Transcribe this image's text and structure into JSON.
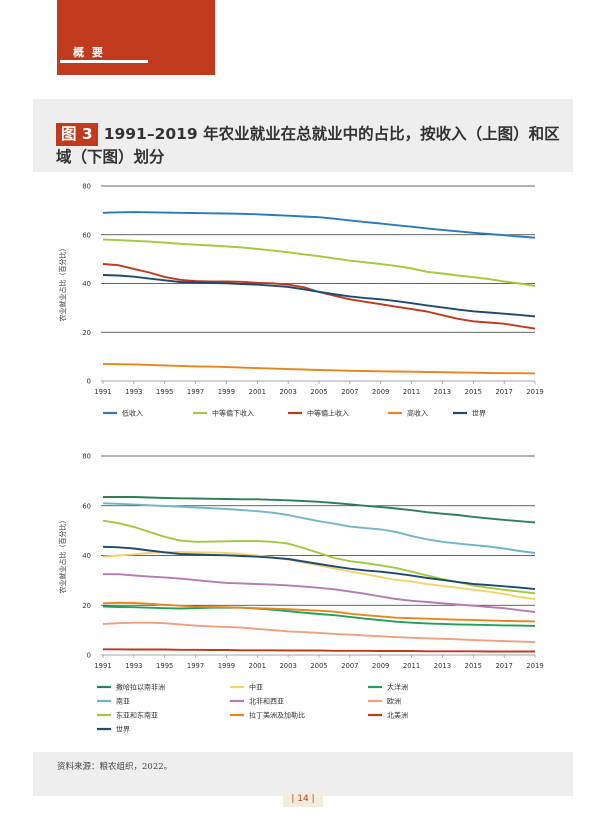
{
  "header": {
    "tab_label": "概 要"
  },
  "figure": {
    "badge": "图 3",
    "title": "1991–2019 年农业就业在总就业中的占比，按收入（上图）和区域（下图）划分"
  },
  "source": "资料来源：粮农组织，2022。",
  "page_number": "| 14 |",
  "chart_data": [
    {
      "type": "line",
      "title": "",
      "ylabel": "农业就业占比（百分比）",
      "xlabel": "",
      "ylim": [
        0,
        80
      ],
      "yticks": [
        "0",
        "20",
        "40",
        "60",
        "80"
      ],
      "xticks": [
        "1991",
        "1993",
        "1995",
        "1997",
        "1999",
        "2001",
        "2003",
        "2005",
        "2007",
        "2009",
        "2011",
        "2013",
        "2015",
        "2017",
        "2019"
      ],
      "grid": true,
      "legend_position": "bottom",
      "x": [
        1991,
        1992,
        1993,
        1994,
        1995,
        1996,
        1997,
        1998,
        1999,
        2000,
        2001,
        2002,
        2003,
        2004,
        2005,
        2006,
        2007,
        2008,
        2009,
        2010,
        2011,
        2012,
        2013,
        2014,
        2015,
        2016,
        2017,
        2018,
        2019
      ],
      "series": [
        {
          "name": "低收入",
          "color": "#2a7ab8",
          "values": [
            69,
            69.2,
            69.3,
            69.2,
            69.1,
            69,
            68.9,
            68.8,
            68.7,
            68.6,
            68.4,
            68.1,
            67.8,
            67.5,
            67.2,
            66.6,
            65.9,
            65.2,
            64.6,
            63.9,
            63.3,
            62.6,
            62,
            61.4,
            60.8,
            60.3,
            59.8,
            59.3,
            58.8
          ]
        },
        {
          "name": "中等偏下收入",
          "color": "#a3c83c",
          "values": [
            58,
            57.8,
            57.5,
            57.2,
            56.8,
            56.3,
            55.9,
            55.6,
            55.2,
            54.8,
            54.2,
            53.5,
            52.8,
            52,
            51.2,
            50.3,
            49.4,
            48.7,
            48,
            47.2,
            46.2,
            44.8,
            44.1,
            43.3,
            42.6,
            41.8,
            40.8,
            40,
            39
          ]
        },
        {
          "name": "中等偏上收入",
          "color": "#c0391b",
          "values": [
            48,
            47.5,
            46,
            44.5,
            42.7,
            41.5,
            41,
            40.8,
            40.8,
            40.7,
            40.3,
            40.1,
            39.5,
            38.5,
            36.5,
            35,
            33.5,
            32.5,
            31.5,
            30.5,
            29.5,
            28.5,
            27,
            25.5,
            24.5,
            24,
            23.5,
            22.5,
            21.5
          ]
        },
        {
          "name": "高收入",
          "color": "#e8861c",
          "values": [
            7,
            6.9,
            6.8,
            6.6,
            6.4,
            6.2,
            6,
            5.9,
            5.7,
            5.5,
            5.3,
            5.1,
            4.9,
            4.7,
            4.5,
            4.4,
            4.2,
            4.1,
            4,
            3.9,
            3.8,
            3.7,
            3.6,
            3.5,
            3.4,
            3.3,
            3.2,
            3.2,
            3.1
          ]
        },
        {
          "name": "世界",
          "color": "#1c4a73",
          "values": [
            43.5,
            43.3,
            42.8,
            42,
            41.3,
            40.6,
            40.4,
            40.2,
            40.1,
            39.8,
            39.5,
            39.1,
            38.6,
            37.6,
            36.6,
            35.6,
            34.7,
            34,
            33.5,
            32.8,
            31.9,
            31,
            30.2,
            29.3,
            28.6,
            28.1,
            27.6,
            27.1,
            26.5
          ]
        }
      ]
    },
    {
      "type": "line",
      "title": "",
      "ylabel": "农业就业占比（百分比）",
      "xlabel": "",
      "ylim": [
        0,
        80
      ],
      "yticks": [
        "0",
        "20",
        "40",
        "60",
        "80"
      ],
      "xticks": [
        "1991",
        "1993",
        "1995",
        "1997",
        "1999",
        "2001",
        "2003",
        "2005",
        "2007",
        "2009",
        "2011",
        "2013",
        "2015",
        "2017",
        "2019"
      ],
      "grid": true,
      "legend_position": "bottom",
      "x": [
        1991,
        1992,
        1993,
        1994,
        1995,
        1996,
        1997,
        1998,
        1999,
        2000,
        2001,
        2002,
        2003,
        2004,
        2005,
        2006,
        2007,
        2008,
        2009,
        2010,
        2011,
        2012,
        2013,
        2014,
        2015,
        2016,
        2017,
        2018,
        2019
      ],
      "series": [
        {
          "name": "撒哈拉以南非洲",
          "color": "#2e7d5b",
          "values": [
            63.5,
            63.5,
            63.5,
            63.3,
            63.1,
            63,
            62.9,
            62.8,
            62.7,
            62.6,
            62.6,
            62.4,
            62.2,
            61.9,
            61.6,
            61.1,
            60.6,
            60,
            59.5,
            58.9,
            58.2,
            57.4,
            56.8,
            56.3,
            55.5,
            54.9,
            54.3,
            53.8,
            53.3
          ]
        },
        {
          "name": "中亚",
          "color": "#f5d36b",
          "values": [
            39.5,
            40,
            40.5,
            41,
            41.3,
            41.4,
            41.3,
            41.2,
            41,
            40.6,
            40,
            39.2,
            38.4,
            37.2,
            36,
            34.8,
            33.6,
            32.5,
            31.3,
            30.2,
            29.5,
            28.5,
            27.8,
            27,
            26.2,
            25.5,
            24.5,
            23.3,
            22.5
          ]
        },
        {
          "name": "大洋洲",
          "color": "#20a05a",
          "values": [
            19.5,
            19.3,
            19.2,
            19,
            18.8,
            18.7,
            18.8,
            19,
            19,
            19,
            18.7,
            18.2,
            17.6,
            17,
            16.5,
            16,
            15.3,
            14.6,
            14,
            13.4,
            13,
            12.7,
            12.5,
            12.3,
            12.2,
            12,
            11.9,
            11.8,
            11.7
          ]
        },
        {
          "name": "南亚",
          "color": "#6fb7c8",
          "values": [
            61,
            60.8,
            60.5,
            60.2,
            59.9,
            59.6,
            59.3,
            59,
            58.7,
            58.3,
            57.8,
            57.2,
            56.3,
            55,
            53.8,
            52.8,
            51.6,
            51,
            50.5,
            49.5,
            47.8,
            46.5,
            45.5,
            44.8,
            44.2,
            43.6,
            42.8,
            41.8,
            41
          ]
        },
        {
          "name": "北非和西亚",
          "color": "#b878b0",
          "values": [
            32.5,
            32.5,
            32,
            31.5,
            31.2,
            30.7,
            30.1,
            29.5,
            29,
            28.8,
            28.5,
            28.3,
            28,
            27.5,
            27,
            26.4,
            25.5,
            24.6,
            23.5,
            22.5,
            21.8,
            21.3,
            20.8,
            20.3,
            19.8,
            19.3,
            18.8,
            18,
            17.3
          ]
        },
        {
          "name": "欧洲",
          "color": "#eea07f",
          "values": [
            12.5,
            12.8,
            13,
            13,
            12.8,
            12.3,
            11.8,
            11.5,
            11.3,
            11,
            10.5,
            10,
            9.5,
            9.2,
            8.9,
            8.5,
            8.2,
            7.8,
            7.5,
            7.2,
            6.9,
            6.7,
            6.5,
            6.3,
            6,
            5.8,
            5.6,
            5.4,
            5.2
          ]
        },
        {
          "name": "东亚和东南亚",
          "color": "#a3c83c",
          "values": [
            54,
            53,
            51.5,
            49.5,
            47.5,
            46,
            45.5,
            45.6,
            45.7,
            45.8,
            45.8,
            45.5,
            44.8,
            43,
            41,
            39,
            37.7,
            37,
            36,
            35,
            33.5,
            32,
            30.5,
            29.3,
            28,
            27,
            26.2,
            25.5,
            24.8
          ]
        },
        {
          "name": "拉丁美洲及加勒比",
          "color": "#e8861c",
          "values": [
            20.8,
            21,
            20.9,
            20.6,
            20.2,
            19.8,
            19.5,
            19.3,
            19.2,
            19,
            18.8,
            18.6,
            18.4,
            18.1,
            17.8,
            17.4,
            16.6,
            16,
            15.5,
            15,
            14.8,
            14.6,
            14.4,
            14.2,
            14.1,
            13.9,
            13.7,
            13.6,
            13.5
          ]
        },
        {
          "name": "北美洲",
          "color": "#c0391b",
          "values": [
            2.3,
            2.3,
            2.2,
            2.2,
            2.2,
            2.1,
            2.1,
            2,
            2,
            1.9,
            1.9,
            1.9,
            1.8,
            1.8,
            1.8,
            1.7,
            1.7,
            1.7,
            1.6,
            1.6,
            1.6,
            1.5,
            1.5,
            1.5,
            1.5,
            1.4,
            1.4,
            1.4,
            1.4
          ]
        },
        {
          "name": "世界",
          "color": "#1c4a73",
          "values": [
            43.5,
            43.3,
            42.8,
            42,
            41.3,
            40.6,
            40.4,
            40.2,
            40.1,
            39.8,
            39.5,
            39.1,
            38.6,
            37.6,
            36.6,
            35.6,
            34.7,
            34,
            33.5,
            32.8,
            31.9,
            31,
            30.2,
            29.3,
            28.6,
            28.1,
            27.6,
            27.1,
            26.5
          ]
        }
      ]
    }
  ]
}
